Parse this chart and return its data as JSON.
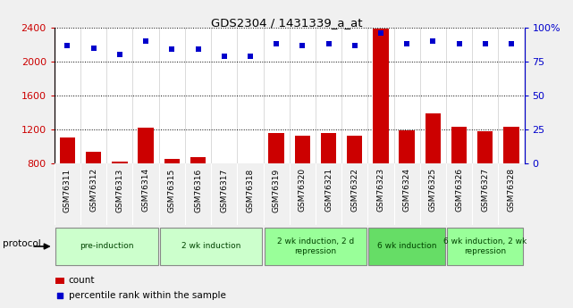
{
  "title": "GDS2304 / 1431339_a_at",
  "samples": [
    "GSM76311",
    "GSM76312",
    "GSM76313",
    "GSM76314",
    "GSM76315",
    "GSM76316",
    "GSM76317",
    "GSM76318",
    "GSM76319",
    "GSM76320",
    "GSM76321",
    "GSM76322",
    "GSM76323",
    "GSM76324",
    "GSM76325",
    "GSM76326",
    "GSM76327",
    "GSM76328"
  ],
  "counts": [
    1100,
    940,
    820,
    1220,
    850,
    870,
    790,
    800,
    1160,
    1130,
    1160,
    1130,
    2390,
    1190,
    1390,
    1230,
    1180,
    1230
  ],
  "percentile_ranks": [
    87,
    85,
    80,
    90,
    84,
    84,
    79,
    79,
    88,
    87,
    88,
    87,
    96,
    88,
    90,
    88,
    88,
    88
  ],
  "bar_color": "#cc0000",
  "dot_color": "#0000cc",
  "ylim_left": [
    800,
    2400
  ],
  "ylim_right": [
    0,
    100
  ],
  "yticks_left": [
    800,
    1200,
    1600,
    2000,
    2400
  ],
  "yticks_right": [
    0,
    25,
    50,
    75,
    100
  ],
  "grid_values": [
    1200,
    1600,
    2000,
    2400
  ],
  "protocols": [
    {
      "label": "pre-induction",
      "start": 0,
      "end": 4,
      "color": "#ccffcc"
    },
    {
      "label": "2 wk induction",
      "start": 4,
      "end": 8,
      "color": "#ccffcc"
    },
    {
      "label": "2 wk induction, 2 d\nrepression",
      "start": 8,
      "end": 12,
      "color": "#99ff99"
    },
    {
      "label": "6 wk induction",
      "start": 12,
      "end": 15,
      "color": "#66dd66"
    },
    {
      "label": "6 wk induction, 2 wk\nrepression",
      "start": 15,
      "end": 18,
      "color": "#99ff99"
    }
  ],
  "legend_count_label": "count",
  "legend_pct_label": "percentile rank within the sample",
  "protocol_label": "protocol",
  "fig_bg": "#f0f0f0",
  "plot_bg": "#ffffff",
  "xtick_bg": "#d0d0d0"
}
